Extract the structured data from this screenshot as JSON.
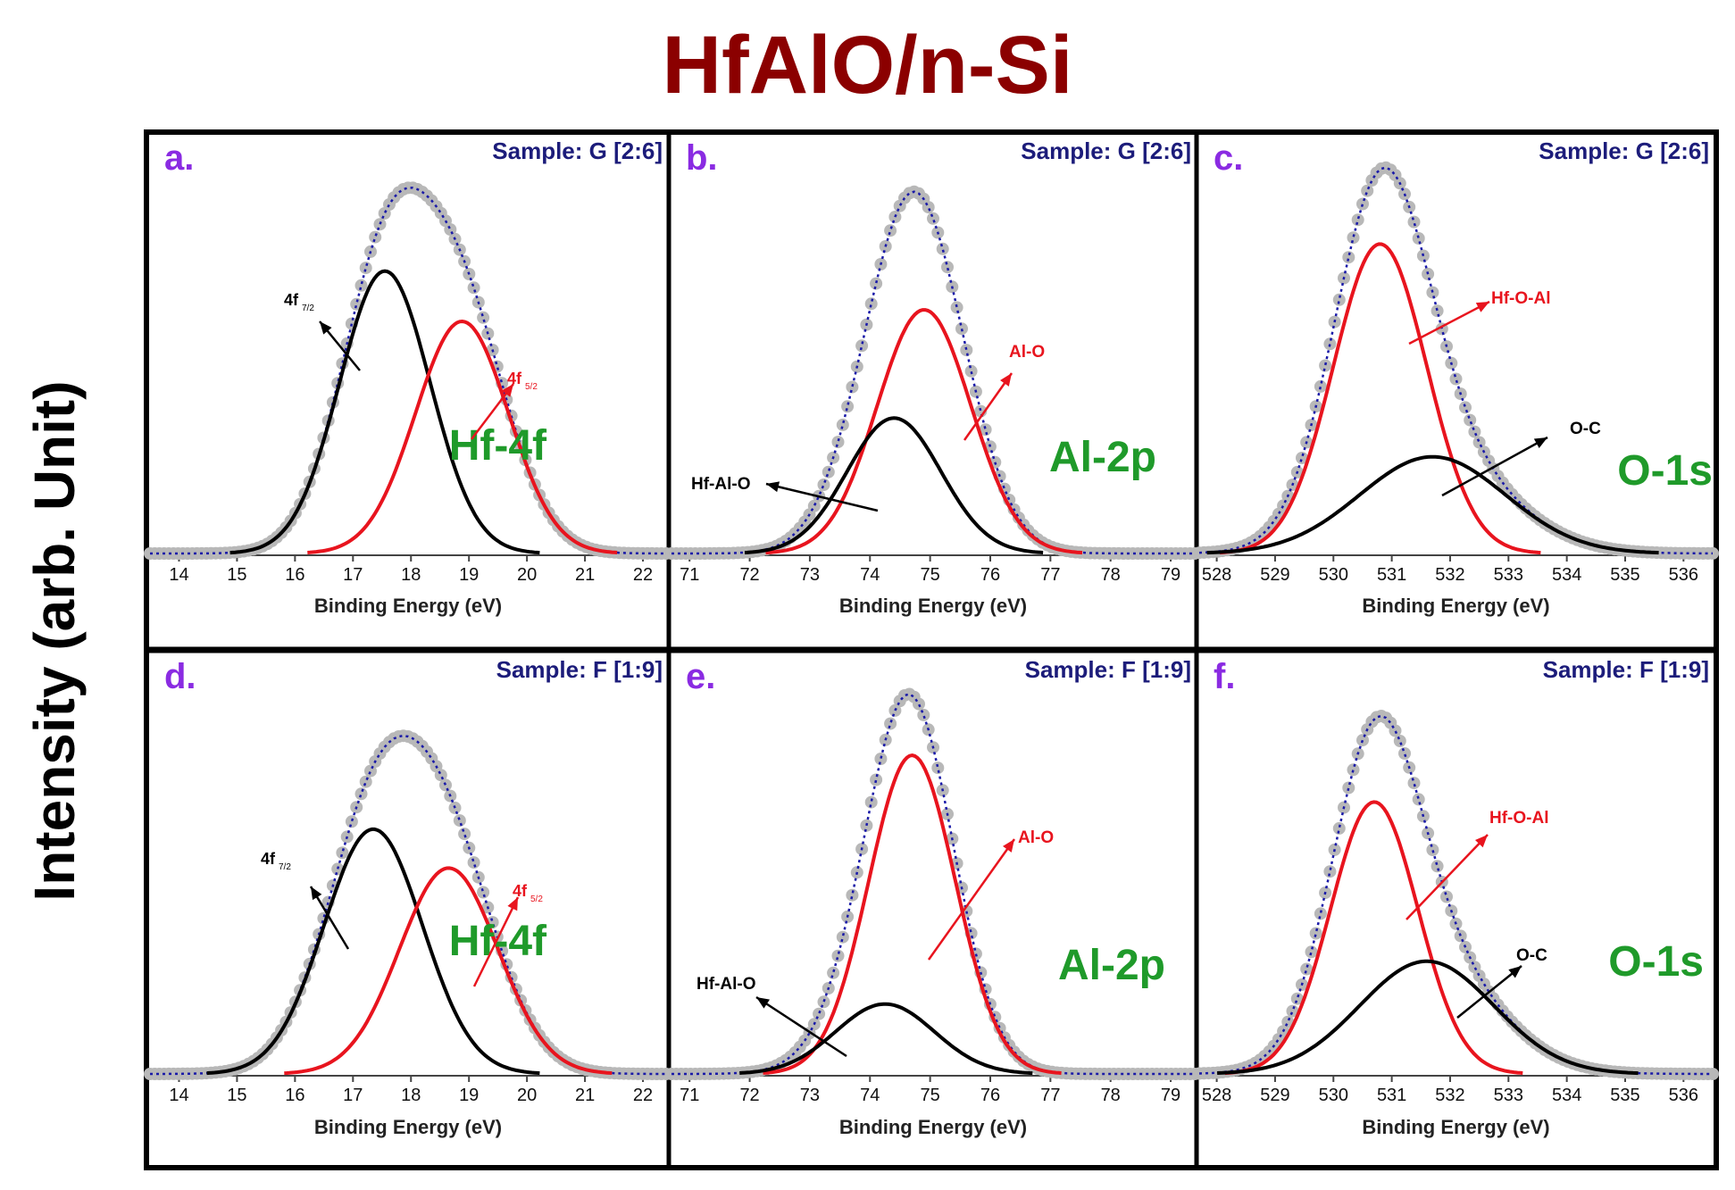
{
  "title": "HfAlO/n-Si",
  "title_color": "#8b0000",
  "ylabel": "Intensity (arb. Unit)",
  "colors": {
    "measured": "#b8b8b8",
    "envelope": "#1a1aa8",
    "red_component": "#e8141e",
    "black_component": "#000000",
    "panel_letter": "#8a2be2",
    "sample_label": "#1c1c7a",
    "element_label": "#1f9a2a",
    "frame": "#000000"
  },
  "chart_data": [
    {
      "type": "line",
      "panel": "a.",
      "sample": "Sample: G [2:6]",
      "element": "Hf-4f",
      "xlabel": "Binding Energy (eV)",
      "xlim": [
        13.5,
        22.4
      ],
      "xticks": [
        14,
        15,
        16,
        17,
        18,
        19,
        20,
        21,
        22
      ],
      "ylim": [
        0,
        1.08
      ],
      "series": [
        {
          "name": "Measured",
          "peaks": [
            {
              "center": 17.55,
              "height": 0.73,
              "sigma": 0.78
            },
            {
              "center": 18.88,
              "height": 0.6,
              "sigma": 0.8
            }
          ]
        },
        {
          "name": "4f7/2",
          "label": "4f",
          "sub": "7/2",
          "color": "black",
          "center": 17.55,
          "height": 0.73,
          "sigma": 0.78
        },
        {
          "name": "4f5/2",
          "label": "4f",
          "sub": "5/2",
          "color": "red",
          "center": 18.88,
          "height": 0.6,
          "sigma": 0.8
        }
      ]
    },
    {
      "type": "line",
      "panel": "b.",
      "sample": "Sample: G [2:6]",
      "element": "Al-2p",
      "xlabel": "Binding Energy (eV)",
      "xlim": [
        70.7,
        79.4
      ],
      "xticks": [
        71,
        72,
        73,
        74,
        75,
        76,
        77,
        78,
        79
      ],
      "ylim": [
        0,
        1.08
      ],
      "series": [
        {
          "name": "Measured",
          "peaks": [
            {
              "center": 74.4,
              "height": 0.35,
              "sigma": 0.78
            },
            {
              "center": 74.9,
              "height": 0.63,
              "sigma": 0.78
            }
          ]
        },
        {
          "name": "Al-O",
          "label": "Al-O",
          "color": "red",
          "center": 74.9,
          "height": 0.63,
          "sigma": 0.78
        },
        {
          "name": "Hf-Al-O",
          "label": "Hf-Al-O",
          "color": "black",
          "center": 74.4,
          "height": 0.35,
          "sigma": 0.78
        }
      ]
    },
    {
      "type": "line",
      "panel": "c.",
      "sample": "Sample: G [2:6]",
      "element": "O-1s",
      "xlabel": "Binding Energy (eV)",
      "xlim": [
        527.7,
        536.5
      ],
      "xticks": [
        528,
        529,
        530,
        531,
        532,
        533,
        534,
        535,
        536
      ],
      "ylim": [
        0,
        1.08
      ],
      "series": [
        {
          "name": "Measured",
          "peaks": [
            {
              "center": 530.8,
              "height": 0.8,
              "sigma": 0.8
            },
            {
              "center": 531.7,
              "height": 0.25,
              "sigma": 1.25
            }
          ]
        },
        {
          "name": "Hf-O-Al",
          "label": "Hf-O-Al",
          "color": "red",
          "center": 530.8,
          "height": 0.8,
          "sigma": 0.8
        },
        {
          "name": "O-C",
          "label": "O-C",
          "color": "black",
          "center": 531.7,
          "height": 0.25,
          "sigma": 1.25
        }
      ]
    },
    {
      "type": "line",
      "panel": "d.",
      "sample": "Sample: F [1:9]",
      "element": "Hf-4f",
      "xlabel": "Binding Energy (eV)",
      "xlim": [
        13.5,
        22.4
      ],
      "xticks": [
        14,
        15,
        16,
        17,
        18,
        19,
        20,
        21,
        22
      ],
      "ylim": [
        0,
        1.08
      ],
      "series": [
        {
          "name": "Measured",
          "peaks": [
            {
              "center": 17.35,
              "height": 0.63,
              "sigma": 0.85
            },
            {
              "center": 18.65,
              "height": 0.53,
              "sigma": 0.85
            }
          ]
        },
        {
          "name": "4f7/2",
          "label": "4f",
          "sub": "7/2",
          "color": "black",
          "center": 17.35,
          "height": 0.63,
          "sigma": 0.85
        },
        {
          "name": "4f5/2",
          "label": "4f",
          "sub": "5/2",
          "color": "red",
          "center": 18.65,
          "height": 0.53,
          "sigma": 0.85
        }
      ]
    },
    {
      "type": "line",
      "panel": "e.",
      "sample": "Sample: F [1:9]",
      "element": "Al-2p",
      "xlabel": "Binding Energy (eV)",
      "xlim": [
        70.7,
        79.4
      ],
      "xticks": [
        71,
        72,
        73,
        74,
        75,
        76,
        77,
        78,
        79
      ],
      "ylim": [
        0,
        1.08
      ],
      "series": [
        {
          "name": "Measured",
          "peaks": [
            {
              "center": 74.25,
              "height": 0.18,
              "sigma": 0.82
            },
            {
              "center": 74.7,
              "height": 0.82,
              "sigma": 0.72
            }
          ]
        },
        {
          "name": "Al-O",
          "label": "Al-O",
          "color": "red",
          "center": 74.7,
          "height": 0.82,
          "sigma": 0.72
        },
        {
          "name": "Hf-Al-O",
          "label": "Hf-Al-O",
          "color": "black",
          "center": 74.25,
          "height": 0.18,
          "sigma": 0.82
        }
      ]
    },
    {
      "type": "line",
      "panel": "f.",
      "sample": "Sample: F [1:9]",
      "element": "O-1s",
      "xlabel": "Binding Energy (eV)",
      "xlim": [
        527.7,
        536.5
      ],
      "xticks": [
        528,
        529,
        530,
        531,
        532,
        533,
        534,
        535,
        536
      ],
      "ylim": [
        0,
        1.08
      ],
      "series": [
        {
          "name": "Measured",
          "peaks": [
            {
              "center": 530.7,
              "height": 0.7,
              "sigma": 0.75
            },
            {
              "center": 531.6,
              "height": 0.29,
              "sigma": 1.15
            }
          ]
        },
        {
          "name": "Hf-O-Al",
          "label": "Hf-O-Al",
          "color": "red",
          "center": 530.7,
          "height": 0.7,
          "sigma": 0.75
        },
        {
          "name": "O-C",
          "label": "O-C",
          "color": "black",
          "center": 531.6,
          "height": 0.29,
          "sigma": 1.15
        }
      ]
    }
  ]
}
